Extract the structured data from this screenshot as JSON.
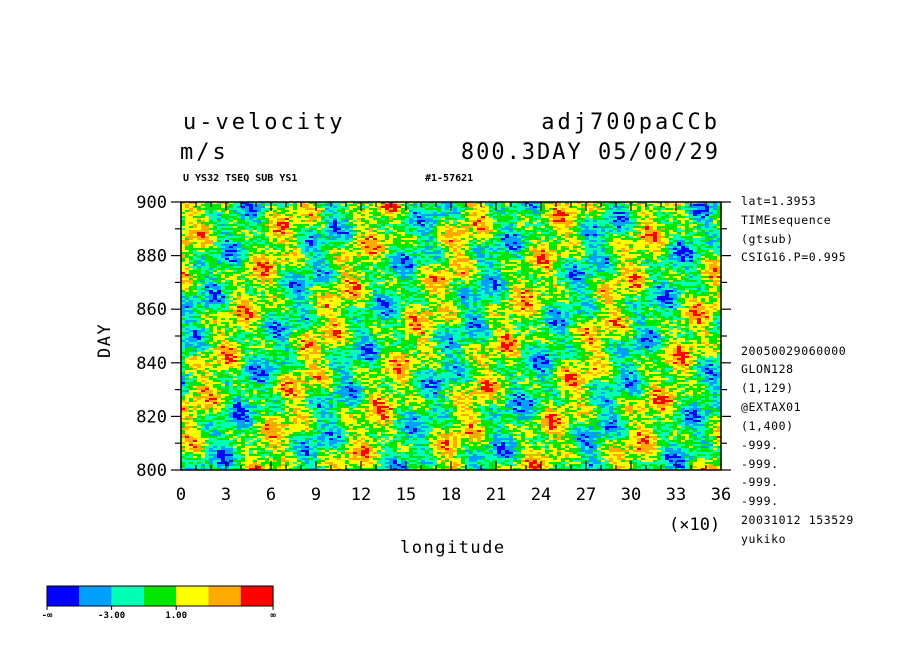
{
  "header": {
    "variable": "u-velocity",
    "units": "m/s",
    "experiment": "adj700paCCb",
    "time": "800.3DAY 05/00/29",
    "subtitle_left": "U YS32 TSEQ SUB YS1",
    "subtitle_right": "#1-57621"
  },
  "side_info": {
    "top": [
      "lat=1.3953",
      "TIMEsequence",
      "(gtsub)",
      "CSIG16.P=0.995"
    ],
    "bottom": [
      "20050029060000",
      "GLON128",
      "(1,129)",
      "@EXTAX01",
      "(1,400)",
      "-999.",
      "-999.",
      "-999.",
      "-999.",
      "20031012 153529",
      "yukiko"
    ]
  },
  "x_multiplier": "(×10)",
  "colorbar": {
    "colors": [
      "#0000ff",
      "#00a0ff",
      "#00ffb4",
      "#00e600",
      "#ffff00",
      "#ffaa00",
      "#ff0000"
    ],
    "labels": [
      "-∞",
      "-3.00",
      "1.00",
      "∞"
    ]
  },
  "chart_data": {
    "type": "heatmap",
    "title": "u-velocity",
    "xlabel": "longitude",
    "ylabel": "DAY",
    "x_ticks": [
      "0",
      "3",
      "6",
      "9",
      "12",
      "15",
      "18",
      "21",
      "24",
      "27",
      "30",
      "33",
      "36"
    ],
    "y_ticks": [
      "800",
      "820",
      "840",
      "860",
      "880",
      "900"
    ],
    "xlim": [
      0,
      36
    ],
    "ylim": [
      800,
      900
    ],
    "grid": false,
    "levels": [
      "-∞",
      "-3.00",
      "1.00",
      "∞"
    ]
  }
}
